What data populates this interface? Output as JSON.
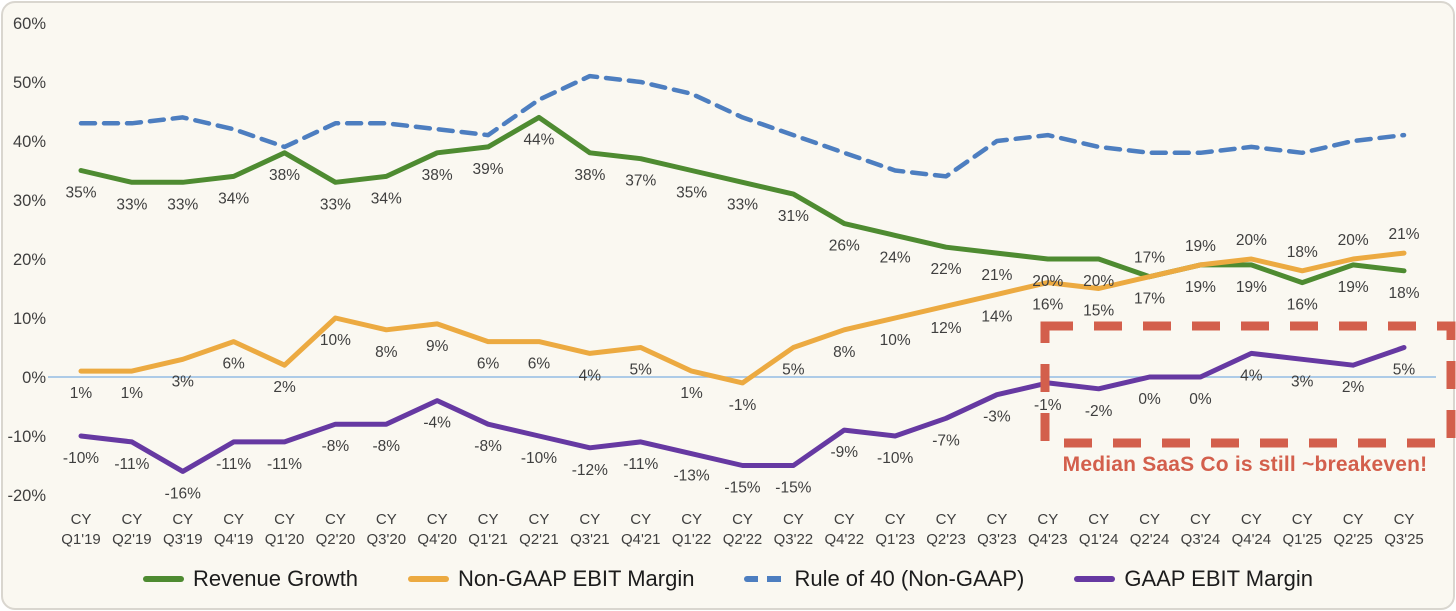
{
  "chart_data": {
    "type": "line",
    "title": "",
    "x_prefix": "CY",
    "categories": [
      "Q1'19",
      "Q2'19",
      "Q3'19",
      "Q4'19",
      "Q1'20",
      "Q2'20",
      "Q3'20",
      "Q4'20",
      "Q1'21",
      "Q2'21",
      "Q3'21",
      "Q4'21",
      "Q1'22",
      "Q2'22",
      "Q3'22",
      "Q4'22",
      "Q1'23",
      "Q2'23",
      "Q3'23",
      "Q4'23",
      "Q1'24",
      "Q2'24",
      "Q3'24",
      "Q4'24",
      "Q1'25",
      "Q2'25",
      "Q3'25"
    ],
    "y_ticks": [
      60,
      50,
      40,
      30,
      20,
      10,
      0,
      -10,
      -20
    ],
    "ylim": [
      -20,
      60
    ],
    "grid": "off",
    "legend_position": "bottom",
    "zero_line_color": "#93bce4",
    "series": [
      {
        "name": "Revenue Growth",
        "color": "#4e8b31",
        "line_style": "solid",
        "show_labels": true,
        "labels_above_indices": [
          21
        ],
        "values": [
          35,
          33,
          33,
          34,
          38,
          33,
          34,
          38,
          39,
          44,
          38,
          37,
          35,
          33,
          31,
          26,
          24,
          22,
          21,
          20,
          20,
          17,
          19,
          19,
          16,
          19,
          18
        ]
      },
      {
        "name": "Non-GAAP EBIT Margin",
        "color": "#ecaa41",
        "line_style": "solid",
        "show_labels": true,
        "labels_above_indices": [
          22,
          23,
          24,
          25,
          26
        ],
        "values": [
          1,
          1,
          3,
          6,
          2,
          10,
          8,
          9,
          6,
          6,
          4,
          5,
          1,
          -1,
          5,
          8,
          10,
          12,
          14,
          16,
          15,
          17,
          19,
          20,
          18,
          20,
          21
        ]
      },
      {
        "name": "Rule of 40 (Non-GAAP)",
        "color": "#4d7ec0",
        "line_style": "dashed",
        "show_labels": false,
        "labels_above_indices": [],
        "values": [
          43,
          43,
          44,
          42,
          39,
          43,
          43,
          42,
          41,
          47,
          51,
          50,
          48,
          44,
          41,
          38,
          35,
          34,
          40,
          41,
          39,
          38,
          38,
          39,
          38,
          40,
          41
        ]
      },
      {
        "name": "GAAP EBIT Margin",
        "color": "#6639a2",
        "line_style": "solid",
        "show_labels": true,
        "labels_above_indices": [],
        "values": [
          -10,
          -11,
          -16,
          -11,
          -11,
          -8,
          -8,
          -4,
          -8,
          -10,
          -12,
          -11,
          -13,
          -15,
          -15,
          -9,
          -10,
          -7,
          -3,
          -1,
          -2,
          0,
          0,
          4,
          3,
          2,
          5
        ]
      }
    ],
    "annotation": {
      "text": "Median SaaS Co is still ~breakeven!",
      "color": "#d35f4c",
      "box_style": "dashed",
      "box_from_category": "Q4'23",
      "box_to_category": "Q3'25"
    }
  }
}
